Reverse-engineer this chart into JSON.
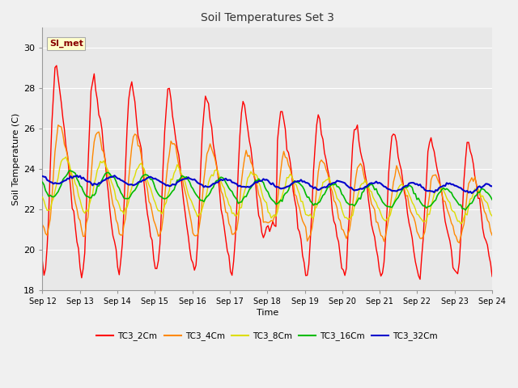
{
  "title": "Soil Temperatures Set 3",
  "xlabel": "Time",
  "ylabel": "Soil Temperature (C)",
  "ylim": [
    18,
    31
  ],
  "yticks": [
    18,
    20,
    22,
    24,
    26,
    28,
    30
  ],
  "xtick_labels": [
    "Sep 12",
    "Sep 13",
    "Sep 14",
    "Sep 15",
    "Sep 16",
    "Sep 17",
    "Sep 18",
    "Sep 19",
    "Sep 20",
    "Sep 21",
    "Sep 22",
    "Sep 23",
    "Sep 24"
  ],
  "plot_bg_color": "#e8e8e8",
  "fig_bg_color": "#f0f0f0",
  "grid_color": "#ffffff",
  "annotation_text": "SI_met",
  "annotation_bg": "#ffffcc",
  "annotation_border": "#aaaaaa",
  "legend_entries": [
    "TC3_2Cm",
    "TC3_4Cm",
    "TC3_8Cm",
    "TC3_16Cm",
    "TC3_32Cm"
  ],
  "line_colors": [
    "#ff0000",
    "#ff8800",
    "#dddd00",
    "#00bb00",
    "#0000cc"
  ],
  "line_widths": [
    1.0,
    1.0,
    1.0,
    1.2,
    1.5
  ]
}
